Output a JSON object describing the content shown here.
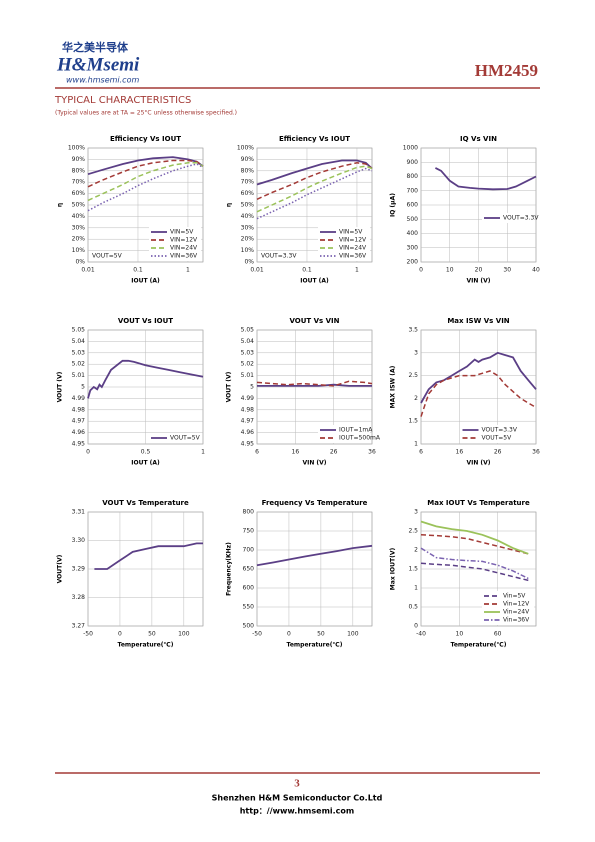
{
  "header": {
    "logo_cn": "华之美半导体",
    "logo_en": "H&Msemi",
    "website": "www.hmsemi.com",
    "part": "HM2459"
  },
  "section": {
    "title": "TYPICAL CHARACTERISTICS",
    "note": "(Typical values are at TA = 25°C unless otherwise specified.)"
  },
  "chart_data": [
    {
      "type": "line",
      "title": "Efficiency Vs IOUT",
      "x_label": "IOUT (A)",
      "y_label": "η",
      "log_x": true,
      "xlim": [
        0.01,
        2
      ],
      "xticks": [
        0.01,
        0.1,
        1
      ],
      "ylim": [
        0,
        100
      ],
      "yticks": [
        {
          "value": 0,
          "label": "0%"
        },
        {
          "value": 10,
          "label": "10%"
        },
        {
          "value": 20,
          "label": "20%"
        },
        {
          "value": 30,
          "label": "30%"
        },
        {
          "value": 40,
          "label": "40%"
        },
        {
          "value": 50,
          "label": "50%"
        },
        {
          "value": 60,
          "label": "60%"
        },
        {
          "value": 70,
          "label": "70%"
        },
        {
          "value": 80,
          "label": "80%"
        },
        {
          "value": 90,
          "label": "90%"
        },
        {
          "value": 100,
          "label": "100%"
        }
      ],
      "grid": true,
      "legend": "lower right",
      "annotation": "VOUT=5V",
      "series": [
        {
          "name": "VIN=5V",
          "color": "#5b3f86",
          "dash": "solid",
          "x": [
            0.01,
            0.02,
            0.05,
            0.1,
            0.2,
            0.5,
            1,
            1.5,
            2
          ],
          "values": [
            77,
            81,
            86,
            89,
            91,
            92,
            90,
            88,
            84
          ]
        },
        {
          "name": "VIN=12V",
          "color": "#a33a36",
          "dash": "dashed",
          "x": [
            0.01,
            0.02,
            0.05,
            0.1,
            0.2,
            0.5,
            1,
            1.5,
            2
          ],
          "values": [
            66,
            72,
            79,
            84,
            87,
            89,
            89,
            88,
            84
          ]
        },
        {
          "name": "VIN=24V",
          "color": "#9bc25a",
          "dash": "dashed",
          "x": [
            0.01,
            0.02,
            0.05,
            0.1,
            0.2,
            0.5,
            1,
            1.5,
            2
          ],
          "values": [
            54,
            60,
            68,
            75,
            80,
            85,
            87,
            87,
            84
          ]
        },
        {
          "name": "VIN=36V",
          "color": "#7a62b0",
          "dash": "dotted",
          "x": [
            0.01,
            0.02,
            0.05,
            0.1,
            0.2,
            0.5,
            1,
            1.5,
            2
          ],
          "values": [
            45,
            52,
            60,
            67,
            73,
            80,
            84,
            86,
            83
          ]
        }
      ]
    },
    {
      "type": "line",
      "title": "Efficiency Vs IOUT",
      "x_label": "IOUT (A)",
      "y_label": "η",
      "log_x": true,
      "xlim": [
        0.01,
        2
      ],
      "xticks": [
        0.01,
        0.1,
        1
      ],
      "ylim": [
        0,
        100
      ],
      "yticks": [
        {
          "value": 0,
          "label": "0%"
        },
        {
          "value": 10,
          "label": "10%"
        },
        {
          "value": 20,
          "label": "20%"
        },
        {
          "value": 30,
          "label": "30%"
        },
        {
          "value": 40,
          "label": "40%"
        },
        {
          "value": 50,
          "label": "50%"
        },
        {
          "value": 60,
          "label": "60%"
        },
        {
          "value": 70,
          "label": "70%"
        },
        {
          "value": 80,
          "label": "80%"
        },
        {
          "value": 90,
          "label": "90%"
        },
        {
          "value": 100,
          "label": "100%"
        }
      ],
      "grid": true,
      "legend": "lower right",
      "annotation": "VOUT=3.3V",
      "series": [
        {
          "name": "VIN=5V",
          "color": "#5b3f86",
          "dash": "solid",
          "x": [
            0.01,
            0.02,
            0.05,
            0.1,
            0.2,
            0.5,
            1,
            1.5,
            2
          ],
          "values": [
            68,
            72,
            78,
            82,
            86,
            89,
            89,
            87,
            82
          ]
        },
        {
          "name": "VIN=12V",
          "color": "#a33a36",
          "dash": "dashed",
          "x": [
            0.01,
            0.02,
            0.05,
            0.1,
            0.2,
            0.5,
            1,
            1.5,
            2
          ],
          "values": [
            55,
            61,
            68,
            74,
            79,
            84,
            87,
            86,
            82
          ]
        },
        {
          "name": "VIN=24V",
          "color": "#9bc25a",
          "dash": "dashed",
          "x": [
            0.01,
            0.02,
            0.05,
            0.1,
            0.2,
            0.5,
            1,
            1.5,
            2
          ],
          "values": [
            44,
            50,
            58,
            65,
            71,
            78,
            83,
            84,
            82
          ]
        },
        {
          "name": "VIN=36V",
          "color": "#7a62b0",
          "dash": "dotted",
          "x": [
            0.01,
            0.02,
            0.05,
            0.1,
            0.2,
            0.5,
            1,
            1.5,
            2
          ],
          "values": [
            38,
            44,
            52,
            59,
            65,
            73,
            79,
            82,
            80
          ]
        }
      ]
    },
    {
      "type": "line",
      "title": "IQ Vs VIN",
      "x_label": "VIN (V)",
      "y_label": "IQ (μA)",
      "xlim": [
        0,
        40
      ],
      "xticks": [
        0,
        10,
        20,
        30,
        40
      ],
      "ylim": [
        200,
        1000
      ],
      "yticks": [
        200,
        300,
        400,
        500,
        600,
        700,
        800,
        900,
        1000
      ],
      "grid": true,
      "legend": "center right",
      "series": [
        {
          "name": "VOUT=3.3V",
          "color": "#5b3f86",
          "dash": "solid",
          "x": [
            5,
            7,
            10,
            13,
            17,
            20,
            25,
            30,
            33,
            37,
            40
          ],
          "values": [
            860,
            840,
            770,
            730,
            720,
            715,
            710,
            712,
            730,
            770,
            800
          ]
        }
      ]
    },
    {
      "type": "line",
      "title": "VOUT Vs IOUT",
      "x_label": "IOUT (A)",
      "y_label": "VOUT (V)",
      "xlim": [
        0,
        1
      ],
      "xticks": [
        0,
        0.5,
        1
      ],
      "ylim": [
        4.95,
        5.05
      ],
      "yticks": [
        4.95,
        4.96,
        4.97,
        4.98,
        4.99,
        5,
        5.01,
        5.02,
        5.03,
        5.04,
        5.05
      ],
      "grid": true,
      "legend": "lower right",
      "series": [
        {
          "name": "VOUT=5V",
          "color": "#5b3f86",
          "dash": "solid",
          "x": [
            0,
            0.02,
            0.05,
            0.08,
            0.1,
            0.12,
            0.15,
            0.2,
            0.3,
            0.35,
            0.4,
            0.5,
            0.6,
            0.7,
            0.8,
            0.9,
            1
          ],
          "values": [
            4.99,
            4.997,
            5.0,
            4.998,
            5.002,
            5.0,
            5.006,
            5.015,
            5.023,
            5.023,
            5.022,
            5.019,
            5.017,
            5.015,
            5.013,
            5.011,
            5.009
          ]
        }
      ]
    },
    {
      "type": "line",
      "title": "VOUT Vs VIN",
      "x_label": "VIN (V)",
      "y_label": "VOUT (V)",
      "xlim": [
        6,
        36
      ],
      "xticks": [
        6,
        16,
        26,
        36
      ],
      "ylim": [
        4.95,
        5.05
      ],
      "yticks": [
        4.95,
        4.96,
        4.97,
        4.98,
        4.99,
        5,
        5.01,
        5.02,
        5.03,
        5.04,
        5.05
      ],
      "grid": true,
      "legend": "lower right",
      "series": [
        {
          "name": "IOUT=1mA",
          "color": "#5b3f86",
          "dash": "solid",
          "x": [
            6,
            10,
            14,
            18,
            22,
            26,
            30,
            34,
            36
          ],
          "values": [
            5.001,
            5.001,
            5.001,
            5.001,
            5.001,
            5.002,
            5.001,
            5.001,
            5.001
          ]
        },
        {
          "name": "IOUT=500mA",
          "color": "#a33a36",
          "dash": "dashed",
          "x": [
            6,
            10,
            14,
            18,
            22,
            26,
            30,
            34,
            36
          ],
          "values": [
            5.004,
            5.003,
            5.002,
            5.003,
            5.002,
            5.001,
            5.005,
            5.004,
            5.003
          ]
        }
      ]
    },
    {
      "type": "line",
      "title": "Max ISW Vs VIN",
      "x_label": "VIN (V)",
      "y_label": "MAX ISW (A)",
      "xlim": [
        6,
        36
      ],
      "xticks": [
        6,
        16,
        26,
        36
      ],
      "ylim": [
        1,
        3.5
      ],
      "yticks": [
        1,
        1.5,
        2,
        2.5,
        3,
        3.5
      ],
      "grid": true,
      "legend": "lower center",
      "series": [
        {
          "name": "VOUT=3.3V",
          "color": "#5b3f86",
          "dash": "solid",
          "x": [
            6,
            8,
            10,
            12,
            14,
            16,
            18,
            20,
            21,
            22,
            24,
            26,
            28,
            30,
            32,
            34,
            36
          ],
          "values": [
            1.9,
            2.2,
            2.35,
            2.4,
            2.5,
            2.6,
            2.7,
            2.85,
            2.8,
            2.85,
            2.9,
            3.0,
            2.95,
            2.9,
            2.6,
            2.4,
            2.2
          ]
        },
        {
          "name": "VOUT=5V",
          "color": "#a33a36",
          "dash": "dashed",
          "x": [
            6,
            8,
            10,
            12,
            14,
            16,
            18,
            20,
            22,
            24,
            26,
            28,
            30,
            32,
            34,
            36
          ],
          "values": [
            1.6,
            2.1,
            2.3,
            2.4,
            2.45,
            2.5,
            2.5,
            2.5,
            2.55,
            2.6,
            2.5,
            2.3,
            2.15,
            2.0,
            1.9,
            1.8
          ]
        }
      ]
    },
    {
      "type": "line",
      "title": "VOUT Vs Temperature",
      "x_label": "Temperature(℃)",
      "y_label": "VOUT(V)",
      "xlim": [
        -50,
        130
      ],
      "xticks": [
        -50,
        0,
        50,
        100
      ],
      "ylim": [
        3.27,
        3.31
      ],
      "yticks": [
        3.27,
        3.28,
        3.29,
        {
          "value": 3.3,
          "label": "3.30"
        },
        3.31
      ],
      "grid": true,
      "series": [
        {
          "color": "#5b3f86",
          "dash": "solid",
          "x": [
            -40,
            -20,
            0,
            20,
            40,
            60,
            80,
            100,
            120,
            130
          ],
          "values": [
            3.29,
            3.29,
            3.293,
            3.296,
            3.297,
            3.298,
            3.298,
            3.298,
            3.299,
            3.299
          ]
        }
      ]
    },
    {
      "type": "line",
      "title": "Frequency Vs Temperature",
      "x_label": "Temperature(℃)",
      "y_label": "Frequency(KHz)",
      "xlim": [
        -50,
        130
      ],
      "xticks": [
        -50,
        0,
        50,
        100
      ],
      "ylim": [
        500,
        800
      ],
      "yticks": [
        500,
        550,
        600,
        650,
        700,
        750,
        800
      ],
      "grid": true,
      "series": [
        {
          "color": "#5b3f86",
          "dash": "solid",
          "x": [
            -50,
            -25,
            0,
            25,
            50,
            75,
            100,
            130
          ],
          "values": [
            660,
            667,
            675,
            683,
            690,
            697,
            705,
            711
          ]
        }
      ]
    },
    {
      "type": "line",
      "title": "Max IOUT Vs Temperature",
      "x_label": "Temperature(℃)",
      "y_label": "Max IOUT(V)",
      "xlim": [
        -40,
        110
      ],
      "xticks": [
        -40,
        10,
        60
      ],
      "ylim": [
        0,
        3
      ],
      "yticks": [
        0,
        0.5,
        1,
        1.5,
        2,
        2.5,
        3
      ],
      "grid": true,
      "legend": "lower right",
      "series": [
        {
          "name": "Vin=5V",
          "color": "#5b3f86",
          "dash": "dashed",
          "x": [
            -40,
            -20,
            0,
            20,
            40,
            60,
            80,
            100
          ],
          "values": [
            1.65,
            1.62,
            1.6,
            1.55,
            1.5,
            1.4,
            1.3,
            1.2
          ]
        },
        {
          "name": "Vin=12V",
          "color": "#a33a36",
          "dash": "dashed",
          "x": [
            -40,
            -20,
            0,
            20,
            40,
            60,
            80,
            100
          ],
          "values": [
            2.4,
            2.38,
            2.35,
            2.3,
            2.2,
            2.1,
            2.0,
            1.9
          ]
        },
        {
          "name": "Vin=24V",
          "color": "#9bc25a",
          "dash": "solid",
          "x": [
            -40,
            -20,
            0,
            20,
            40,
            60,
            80,
            100
          ],
          "values": [
            2.75,
            2.62,
            2.55,
            2.5,
            2.4,
            2.25,
            2.05,
            1.9
          ]
        },
        {
          "name": "Vin=36V",
          "color": "#7a62b0",
          "dash": "dashdot",
          "x": [
            -40,
            -20,
            0,
            20,
            40,
            60,
            80,
            100
          ],
          "values": [
            2.05,
            1.8,
            1.75,
            1.72,
            1.7,
            1.6,
            1.45,
            1.25
          ]
        }
      ]
    }
  ],
  "footer": {
    "page": "3",
    "company": "Shenzhen H&M Semiconductor Co.Ltd",
    "website": "http：//www.hmsemi.com"
  }
}
